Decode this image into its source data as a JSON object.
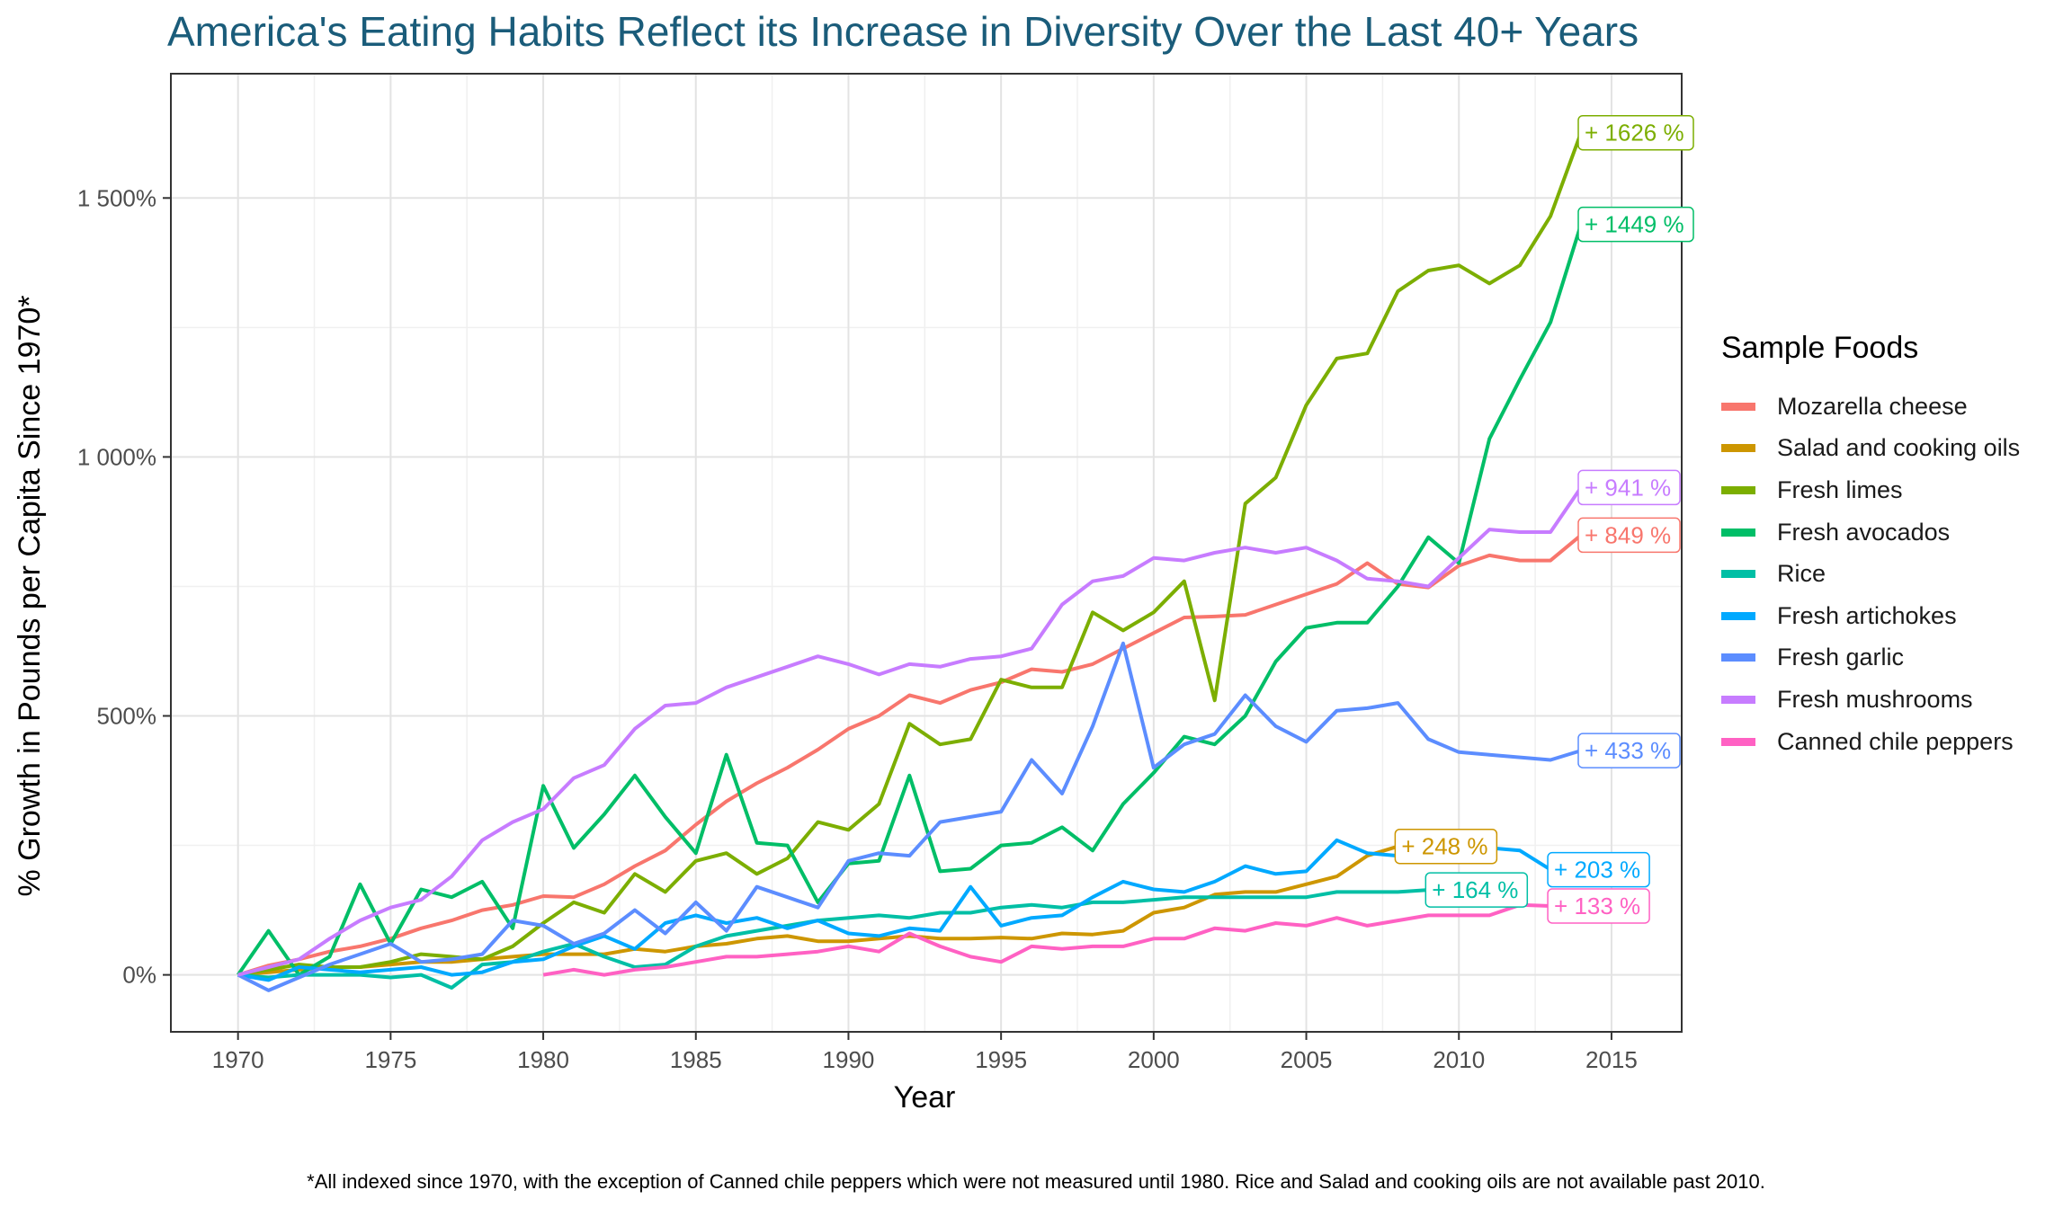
{
  "chart_data": {
    "type": "line",
    "title": "America's Eating Habits Reflect its Increase in Diversity Over the Last 40+ Years",
    "xlabel": "Year",
    "ylabel": "% Growth in Pounds per Capita Since 1970*",
    "xlim": [
      1967.8,
      2017.3
    ],
    "ylim": [
      -110,
      1740
    ],
    "x_ticks": [
      1970,
      1975,
      1980,
      1985,
      1990,
      1995,
      2000,
      2005,
      2010,
      2015
    ],
    "y_ticks": [
      0,
      500,
      1000,
      1500
    ],
    "y_tick_labels": [
      "0%",
      "500%",
      "1 000%",
      "1 500%"
    ],
    "grid": true,
    "legend_title": "Sample Foods",
    "legend_position": "right",
    "footnote": "*All indexed since 1970, with the exception of Canned chile peppers which were not measured until 1980. Rice and Salad and cooking oils are not available past 2010.",
    "series": [
      {
        "name": "Mozarella cheese",
        "color": "#F8766D",
        "label": "+ 849 %",
        "x_start": 1970,
        "values": [
          0,
          18,
          30,
          45,
          55,
          70,
          90,
          105,
          125,
          135,
          152,
          150,
          175,
          210,
          240,
          290,
          335,
          370,
          400,
          435,
          475,
          500,
          540,
          525,
          550,
          565,
          590,
          585,
          600,
          630,
          660,
          690,
          692,
          695,
          715,
          735,
          755,
          795,
          755,
          748,
          790,
          810,
          800,
          800,
          849
        ]
      },
      {
        "name": "Salad and cooking oils",
        "color": "#CD9600",
        "label": "+ 248 %",
        "x_start": 1970,
        "values": [
          0,
          5,
          10,
          15,
          15,
          20,
          25,
          25,
          30,
          35,
          40,
          40,
          40,
          50,
          45,
          55,
          60,
          70,
          75,
          65,
          65,
          70,
          75,
          70,
          70,
          72,
          70,
          80,
          78,
          85,
          120,
          130,
          155,
          160,
          160,
          175,
          190,
          230,
          248
        ]
      },
      {
        "name": "Fresh limes",
        "color": "#7CAE00",
        "label": "+ 1626 %",
        "x_start": 1970,
        "values": [
          0,
          10,
          20,
          15,
          15,
          25,
          40,
          35,
          30,
          55,
          100,
          140,
          120,
          195,
          160,
          220,
          235,
          195,
          225,
          295,
          280,
          330,
          485,
          445,
          455,
          570,
          555,
          555,
          700,
          665,
          700,
          760,
          530,
          910,
          960,
          1100,
          1190,
          1200,
          1320,
          1360,
          1370,
          1335,
          1370,
          1465,
          1626
        ]
      },
      {
        "name": "Fresh avocados",
        "color": "#00BE67",
        "label": "+ 1449 %",
        "x_start": 1970,
        "values": [
          0,
          85,
          0,
          35,
          175,
          60,
          165,
          150,
          180,
          90,
          365,
          245,
          310,
          385,
          305,
          235,
          425,
          255,
          250,
          140,
          215,
          220,
          385,
          200,
          205,
          250,
          255,
          285,
          240,
          330,
          390,
          460,
          445,
          500,
          605,
          670,
          680,
          680,
          750,
          845,
          795,
          1035,
          1150,
          1260,
          1449
        ]
      },
      {
        "name": "Rice",
        "color": "#00BFA5",
        "label": "+ 164 %",
        "x_start": 1970,
        "values": [
          0,
          -5,
          0,
          0,
          0,
          -5,
          0,
          -25,
          20,
          25,
          45,
          60,
          35,
          15,
          20,
          55,
          75,
          85,
          95,
          105,
          110,
          115,
          110,
          120,
          120,
          130,
          135,
          130,
          140,
          140,
          145,
          150,
          150,
          150,
          150,
          150,
          160,
          160,
          160,
          164
        ]
      },
      {
        "name": "Fresh artichokes",
        "color": "#00A9FF",
        "label": "+ 203 %",
        "x_start": 1970,
        "values": [
          0,
          -10,
          15,
          10,
          5,
          10,
          15,
          0,
          5,
          25,
          30,
          55,
          75,
          50,
          100,
          115,
          100,
          110,
          90,
          105,
          80,
          75,
          90,
          85,
          170,
          95,
          110,
          115,
          150,
          180,
          165,
          160,
          180,
          210,
          195,
          200,
          260,
          235,
          230,
          225,
          220,
          245,
          240,
          203
        ]
      },
      {
        "name": "Fresh garlic",
        "color": "#5C8DFF",
        "label": "+ 433 %",
        "x_start": 1970,
        "values": [
          0,
          -30,
          -5,
          20,
          40,
          60,
          25,
          30,
          40,
          105,
          95,
          60,
          80,
          125,
          80,
          140,
          85,
          170,
          150,
          130,
          220,
          235,
          230,
          295,
          305,
          315,
          415,
          350,
          480,
          640,
          400,
          445,
          465,
          540,
          480,
          450,
          510,
          515,
          525,
          455,
          430,
          425,
          420,
          415,
          433
        ]
      },
      {
        "name": "Fresh mushrooms",
        "color": "#C77CFF",
        "label": "+ 941 %",
        "x_start": 1970,
        "values": [
          0,
          15,
          30,
          70,
          105,
          130,
          145,
          190,
          260,
          295,
          320,
          380,
          405,
          475,
          520,
          525,
          555,
          575,
          595,
          615,
          600,
          580,
          600,
          595,
          610,
          615,
          630,
          715,
          760,
          770,
          805,
          800,
          815,
          825,
          815,
          825,
          800,
          765,
          760,
          750,
          805,
          860,
          855,
          855,
          941
        ]
      },
      {
        "name": "Canned chile peppers",
        "color": "#FF61C3",
        "label": "+ 133 %",
        "x_start": 1980,
        "values": [
          0,
          10,
          0,
          10,
          15,
          25,
          35,
          35,
          40,
          45,
          55,
          45,
          80,
          55,
          35,
          25,
          55,
          50,
          55,
          55,
          70,
          70,
          90,
          85,
          100,
          95,
          110,
          95,
          105,
          115,
          115,
          115,
          135,
          133
        ]
      }
    ]
  }
}
